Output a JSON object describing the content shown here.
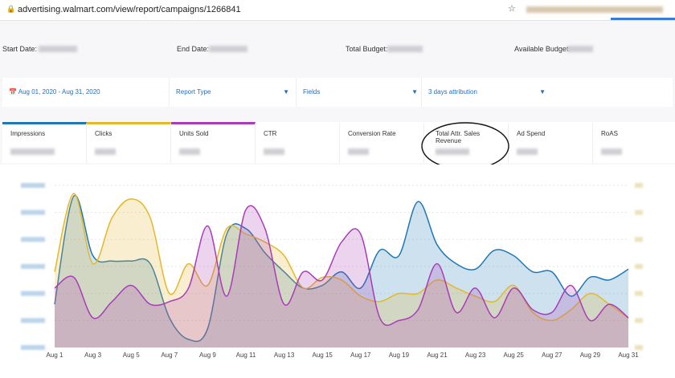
{
  "browser": {
    "url": "advertising.walmart.com/view/report/campaigns/1266841"
  },
  "summary": {
    "start_date": "Start Date:",
    "end_date": "End Date:",
    "total_budget": "Total Budget:",
    "available_budget": "Available Budget:"
  },
  "filters": {
    "date_range": "Aug 01, 2020 - Aug 31, 2020",
    "report_type": "Report Type",
    "fields": "Fields",
    "attribution": "3 days attribution"
  },
  "tabs": [
    "Impressions",
    "Clicks",
    "Units Sold",
    "CTR",
    "Conversion Rate",
    "Total Attr. Sales Revenue",
    "Ad Spend",
    "RoAS"
  ],
  "chart_data": {
    "type": "area",
    "categories": [
      "Aug 1",
      null,
      "Aug 3",
      null,
      "Aug 5",
      null,
      "Aug 7",
      null,
      "Aug 9",
      null,
      "Aug 11",
      null,
      "Aug 13",
      null,
      "Aug 15",
      null,
      "Aug 17",
      null,
      "Aug 19",
      null,
      "Aug 21",
      null,
      "Aug 23",
      null,
      "Aug 25",
      null,
      "Aug 27",
      null,
      "Aug 29",
      null,
      "Aug 31"
    ],
    "ylim": [
      0,
      6
    ],
    "yticks": [
      0,
      1,
      2,
      3,
      4,
      5,
      6
    ],
    "grid": true,
    "series": [
      {
        "color": "#1f77b4",
        "values": [
          1.6,
          5.6,
          3.4,
          3.2,
          3.2,
          3.1,
          1.1,
          0.3,
          0.7,
          4.2,
          4.4,
          3.5,
          2.8,
          2.2,
          2.3,
          2.8,
          2.2,
          3.6,
          3.4,
          5.4,
          3.8,
          3.1,
          2.9,
          3.6,
          3.4,
          2.8,
          2.8,
          1.9,
          2.6,
          2.5,
          2.9
        ]
      },
      {
        "color": "#e3b82b",
        "values": [
          2.8,
          5.7,
          3.1,
          4.8,
          5.5,
          4.8,
          2.0,
          3.1,
          2.3,
          4.4,
          4.2,
          3.9,
          3.4,
          2.2,
          2.6,
          2.5,
          1.9,
          1.7,
          2.0,
          2.0,
          2.5,
          2.2,
          1.9,
          1.7,
          2.3,
          1.3,
          1.0,
          1.4,
          2.0,
          1.6,
          1.1
        ]
      },
      {
        "color": "#a93cb8",
        "values": [
          2.2,
          2.6,
          1.1,
          1.7,
          2.3,
          1.6,
          1.7,
          2.2,
          4.5,
          1.9,
          5.1,
          4.4,
          1.6,
          2.8,
          2.5,
          3.9,
          4.2,
          1.1,
          1.0,
          1.4,
          3.1,
          1.3,
          2.2,
          1.1,
          2.2,
          1.4,
          1.3,
          2.3,
          1.0,
          1.6,
          1.1
        ]
      }
    ]
  }
}
